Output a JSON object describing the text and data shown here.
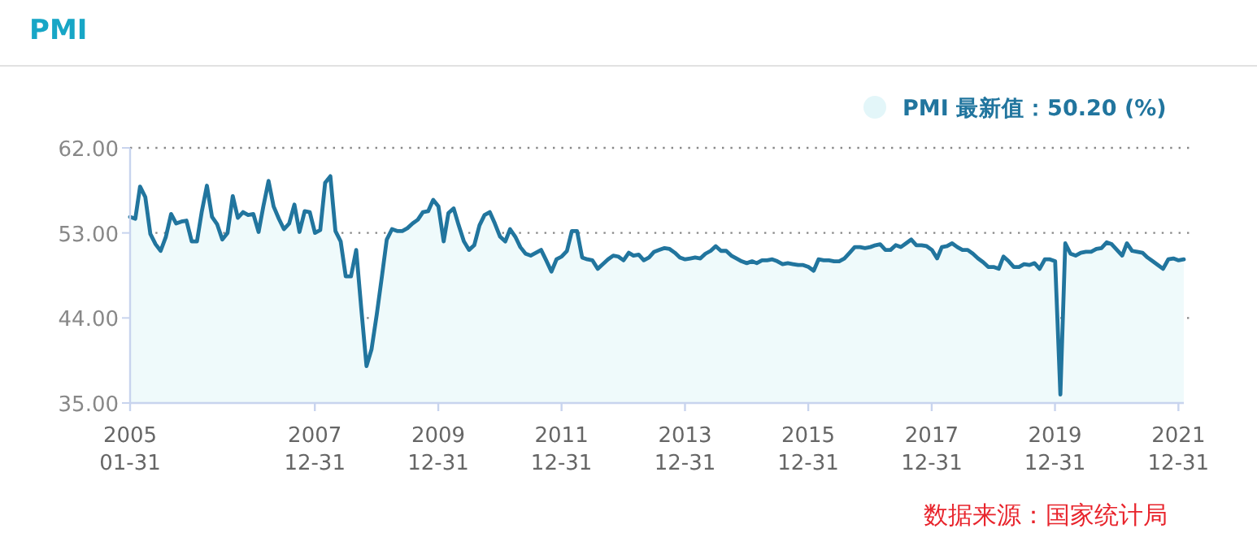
{
  "chart_data": {
    "type": "area",
    "title": "PMI",
    "annotations": [
      "数据来源：国家统计局"
    ],
    "legend": "top right",
    "grid": "y",
    "marker": "none",
    "line_style": "solid",
    "xlim": [
      "2005-01",
      "2022-02"
    ],
    "xticks": [
      {
        "value": "2005-01",
        "label": "2005\n01-31"
      },
      {
        "value": "2007-12-31",
        "label": "2007\n12-31"
      },
      {
        "value": "2009-12-31",
        "label": "2009\n12-31"
      },
      {
        "value": "2011-12-31",
        "label": "2011\n12-31"
      },
      {
        "value": "2013-12-31",
        "label": "2013\n12-31"
      },
      {
        "value": "2015-12-31",
        "label": "2015\n12-31"
      },
      {
        "value": "2017-12-31",
        "label": "2017\n12-31"
      },
      {
        "value": "2019-12-31",
        "label": "2019\n12-31"
      },
      {
        "value": "2021-12-31",
        "label": "2021\n12-31"
      }
    ],
    "ylim": [
      35,
      62
    ],
    "yticks": [
      {
        "value": 35,
        "label": "35.00"
      },
      {
        "value": 44,
        "label": "44.00"
      },
      {
        "value": 53,
        "label": "53.00"
      },
      {
        "value": 62,
        "label": "62.00"
      }
    ],
    "x": [
      "2005-01",
      "2005-02",
      "2005-03",
      "2005-04",
      "2005-05",
      "2005-06",
      "2005-07",
      "2005-08",
      "2005-09",
      "2005-10",
      "2005-11",
      "2005-12",
      "2006-01",
      "2006-02",
      "2006-03",
      "2006-04",
      "2006-05",
      "2006-06",
      "2006-07",
      "2006-08",
      "2006-09",
      "2006-10",
      "2006-11",
      "2006-12",
      "2007-01",
      "2007-02",
      "2007-03",
      "2007-04",
      "2007-05",
      "2007-06",
      "2007-07",
      "2007-08",
      "2007-09",
      "2007-10",
      "2007-11",
      "2007-12",
      "2008-01",
      "2008-02",
      "2008-03",
      "2008-04",
      "2008-05",
      "2008-06",
      "2008-07",
      "2008-08",
      "2008-09",
      "2008-10",
      "2008-11",
      "2008-12",
      "2009-01",
      "2009-02",
      "2009-03",
      "2009-04",
      "2009-05",
      "2009-06",
      "2009-07",
      "2009-08",
      "2009-09",
      "2009-10",
      "2009-11",
      "2009-12",
      "2010-01",
      "2010-02",
      "2010-03",
      "2010-04",
      "2010-05",
      "2010-06",
      "2010-07",
      "2010-08",
      "2010-09",
      "2010-10",
      "2010-11",
      "2010-12",
      "2011-01",
      "2011-02",
      "2011-03",
      "2011-04",
      "2011-05",
      "2011-06",
      "2011-07",
      "2011-08",
      "2011-09",
      "2011-10",
      "2011-11",
      "2011-12",
      "2012-01",
      "2012-02",
      "2012-03",
      "2012-04",
      "2012-05",
      "2012-06",
      "2012-07",
      "2012-08",
      "2012-09",
      "2012-10",
      "2012-11",
      "2012-12",
      "2013-01",
      "2013-02",
      "2013-03",
      "2013-04",
      "2013-05",
      "2013-06",
      "2013-07",
      "2013-08",
      "2013-09",
      "2013-10",
      "2013-11",
      "2013-12",
      "2014-01",
      "2014-02",
      "2014-03",
      "2014-04",
      "2014-05",
      "2014-06",
      "2014-07",
      "2014-08",
      "2014-09",
      "2014-10",
      "2014-11",
      "2014-12",
      "2015-01",
      "2015-02",
      "2015-03",
      "2015-04",
      "2015-05",
      "2015-06",
      "2015-07",
      "2015-08",
      "2015-09",
      "2015-10",
      "2015-11",
      "2015-12",
      "2016-01",
      "2016-02",
      "2016-03",
      "2016-04",
      "2016-05",
      "2016-06",
      "2016-07",
      "2016-08",
      "2016-09",
      "2016-10",
      "2016-11",
      "2016-12",
      "2017-01",
      "2017-02",
      "2017-03",
      "2017-04",
      "2017-05",
      "2017-06",
      "2017-07",
      "2017-08",
      "2017-09",
      "2017-10",
      "2017-11",
      "2017-12",
      "2018-01",
      "2018-02",
      "2018-03",
      "2018-04",
      "2018-05",
      "2018-06",
      "2018-07",
      "2018-08",
      "2018-09",
      "2018-10",
      "2018-11",
      "2018-12",
      "2019-01",
      "2019-02",
      "2019-03",
      "2019-04",
      "2019-05",
      "2019-06",
      "2019-07",
      "2019-08",
      "2019-09",
      "2019-10",
      "2019-11",
      "2019-12",
      "2020-01",
      "2020-02",
      "2020-03",
      "2020-04",
      "2020-05",
      "2020-06",
      "2020-07",
      "2020-08",
      "2020-09",
      "2020-10",
      "2020-11",
      "2020-12",
      "2021-01",
      "2021-02",
      "2021-03",
      "2021-04",
      "2021-05",
      "2021-06",
      "2021-07",
      "2021-08",
      "2021-09",
      "2021-10",
      "2021-11",
      "2021-12",
      "2022-01",
      "2022-02"
    ],
    "series": [
      {
        "name": "PMI 最新值：50.20 (%)",
        "color": "#21759e",
        "values": [
          54.7,
          54.5,
          57.9,
          56.8,
          52.9,
          51.8,
          51.1,
          52.6,
          55.0,
          54.0,
          54.2,
          54.3,
          52.1,
          52.1,
          55.2,
          58.0,
          54.7,
          53.9,
          52.3,
          53.0,
          56.9,
          54.6,
          55.2,
          54.9,
          55.0,
          53.1,
          55.8,
          58.5,
          55.8,
          54.5,
          53.4,
          54.0,
          56.0,
          53.1,
          55.3,
          55.2,
          53.0,
          53.3,
          58.3,
          59.0,
          53.2,
          52.1,
          48.4,
          48.4,
          51.2,
          45.0,
          38.9,
          40.7,
          44.4,
          48.5,
          52.3,
          53.4,
          53.2,
          53.2,
          53.5,
          54.0,
          54.4,
          55.2,
          55.3,
          56.5,
          55.8,
          52.1,
          55.1,
          55.6,
          53.8,
          52.1,
          51.2,
          51.7,
          53.8,
          54.9,
          55.2,
          54.0,
          52.6,
          52.1,
          53.4,
          52.6,
          51.5,
          50.8,
          50.6,
          50.9,
          51.2,
          50.1,
          48.9,
          50.2,
          50.5,
          51.1,
          53.2,
          53.2,
          50.4,
          50.2,
          50.1,
          49.2,
          49.7,
          50.2,
          50.6,
          50.5,
          50.1,
          50.9,
          50.6,
          50.7,
          50.1,
          50.4,
          51.0,
          51.2,
          51.4,
          51.3,
          50.9,
          50.4,
          50.2,
          50.3,
          50.4,
          50.3,
          50.8,
          51.1,
          51.6,
          51.1,
          51.1,
          50.6,
          50.3,
          50.0,
          49.8,
          50.0,
          49.8,
          50.1,
          50.1,
          50.2,
          50.0,
          49.7,
          49.8,
          49.7,
          49.6,
          49.6,
          49.4,
          49.0,
          50.2,
          50.1,
          50.1,
          50.0,
          50.0,
          50.3,
          50.9,
          51.5,
          51.5,
          51.4,
          51.5,
          51.7,
          51.8,
          51.2,
          51.2,
          51.7,
          51.5,
          51.9,
          52.3,
          51.7,
          51.7,
          51.6,
          51.2,
          50.3,
          51.5,
          51.6,
          51.9,
          51.5,
          51.2,
          51.2,
          50.8,
          50.3,
          49.9,
          49.4,
          49.4,
          49.2,
          50.5,
          50.0,
          49.4,
          49.4,
          49.7,
          49.6,
          49.8,
          49.2,
          50.2,
          50.2,
          50.0,
          35.9,
          51.9,
          50.8,
          50.6,
          50.9,
          51.0,
          51.0,
          51.3,
          51.4,
          52.0,
          51.8,
          51.2,
          50.6,
          51.9,
          51.1,
          51.0,
          50.9,
          50.4,
          50.0,
          49.6,
          49.2,
          50.2,
          50.3,
          50.1,
          50.2
        ]
      }
    ]
  }
}
